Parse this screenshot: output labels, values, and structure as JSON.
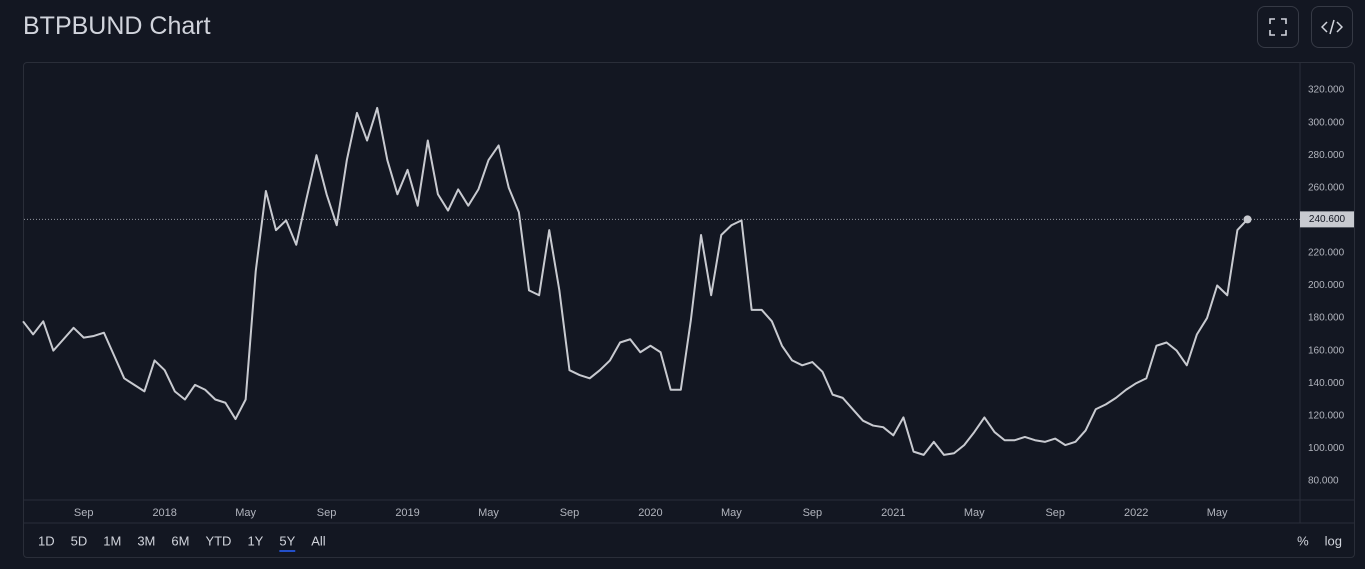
{
  "chart_data": {
    "type": "line",
    "title": "BTPBUND Chart",
    "categories": [
      null,
      null,
      null,
      null,
      null,
      null,
      "Sep",
      null,
      null,
      null,
      null,
      null,
      null,
      null,
      "2018",
      null,
      null,
      null,
      null,
      null,
      null,
      null,
      "May",
      null,
      null,
      null,
      null,
      null,
      null,
      null,
      "Sep",
      null,
      null,
      null,
      null,
      null,
      null,
      null,
      "2019",
      null,
      null,
      null,
      null,
      null,
      null,
      null,
      "May",
      null,
      null,
      null,
      null,
      null,
      null,
      null,
      "Sep",
      null,
      null,
      null,
      null,
      null,
      null,
      null,
      "2020",
      null,
      null,
      null,
      null,
      null,
      null,
      null,
      "May",
      null,
      null,
      null,
      null,
      null,
      null,
      null,
      "Sep",
      null,
      null,
      null,
      null,
      null,
      null,
      null,
      "2021",
      null,
      null,
      null,
      null,
      null,
      null,
      null,
      "May",
      null,
      null,
      null,
      null,
      null,
      null,
      null,
      "Sep",
      null,
      null,
      null,
      null,
      null,
      null,
      null,
      "2022",
      null,
      null,
      null,
      null,
      null,
      null,
      null,
      "May",
      null,
      null,
      null
    ],
    "series": [
      {
        "name": "BTPBUND",
        "color": "#c8cad0",
        "values": [
          178,
          170,
          178,
          160,
          167,
          174,
          168,
          169,
          171,
          157,
          143,
          139,
          135,
          154,
          148,
          135,
          130,
          139,
          136,
          130,
          128,
          118,
          130,
          209,
          258,
          234,
          240,
          225,
          253,
          280,
          256,
          237,
          277,
          306,
          289,
          309,
          277,
          256,
          271,
          249,
          289,
          256,
          246,
          259,
          249,
          259,
          277,
          286,
          260,
          245,
          197,
          194,
          234,
          197,
          148,
          145,
          143,
          148,
          154,
          165,
          167,
          159,
          163,
          159,
          136,
          136,
          179,
          231,
          194,
          231,
          237,
          240,
          185,
          185,
          178,
          163,
          154,
          151,
          153,
          147,
          133,
          131,
          124,
          117,
          114,
          113,
          108,
          119,
          98,
          96,
          104,
          96,
          97,
          102,
          110,
          119,
          110,
          105,
          105,
          107,
          105,
          104,
          106,
          102,
          104,
          111,
          124,
          127,
          131,
          136,
          140,
          143,
          163,
          165,
          160,
          151,
          170,
          180,
          200,
          194,
          234,
          240.6
        ],
        "value_labels": [
          null,
          null,
          null,
          null,
          null,
          null,
          null,
          null,
          null,
          null,
          null,
          null,
          null,
          null,
          null,
          null,
          null,
          null,
          null,
          null,
          null,
          null,
          null,
          null,
          null,
          null,
          null,
          null,
          null,
          null,
          null,
          null,
          null,
          null,
          null,
          null,
          null,
          null,
          null,
          null,
          null,
          null,
          null,
          null,
          null,
          null,
          null,
          null,
          null,
          null,
          null,
          null,
          null,
          null,
          null,
          null,
          null,
          null,
          null,
          null,
          null,
          null,
          null,
          null,
          null,
          null,
          null,
          null,
          null,
          null,
          null,
          null,
          null,
          null,
          null,
          null,
          null,
          null,
          null,
          null,
          null,
          null,
          null,
          null,
          null,
          null,
          null,
          null,
          null,
          null,
          null,
          null,
          null,
          null,
          null,
          null,
          null,
          null,
          null,
          null,
          null,
          null,
          null,
          null,
          null,
          null,
          null,
          null,
          null,
          null,
          null,
          null,
          null,
          null,
          null,
          null,
          null,
          null,
          null,
          null,
          null,
          "240.600"
        ]
      }
    ],
    "ylim": [
      68.3,
      336.6
    ],
    "yticks": [
      {
        "value": 80,
        "label": "80.000"
      },
      {
        "value": 100,
        "label": "100.000"
      },
      {
        "value": 120,
        "label": "120.000"
      },
      {
        "value": 140,
        "label": "140.000"
      },
      {
        "value": 160,
        "label": "160.000"
      },
      {
        "value": 180,
        "label": "180.000"
      },
      {
        "value": 200,
        "label": "200.000"
      },
      {
        "value": 220,
        "label": "220.000"
      },
      {
        "value": 240,
        "label": "240.000"
      },
      {
        "value": 260,
        "label": "260.000"
      },
      {
        "value": 280,
        "label": "280.000"
      },
      {
        "value": 300,
        "label": "300.000"
      },
      {
        "value": 320,
        "label": "320.000"
      }
    ],
    "grid": false,
    "range_buttons": [
      "1D",
      "5D",
      "1M",
      "3M",
      "6M",
      "YTD",
      "1Y",
      "5Y",
      "All"
    ],
    "selected_range": "5Y",
    "scale_buttons": [
      "%",
      "log"
    ]
  }
}
